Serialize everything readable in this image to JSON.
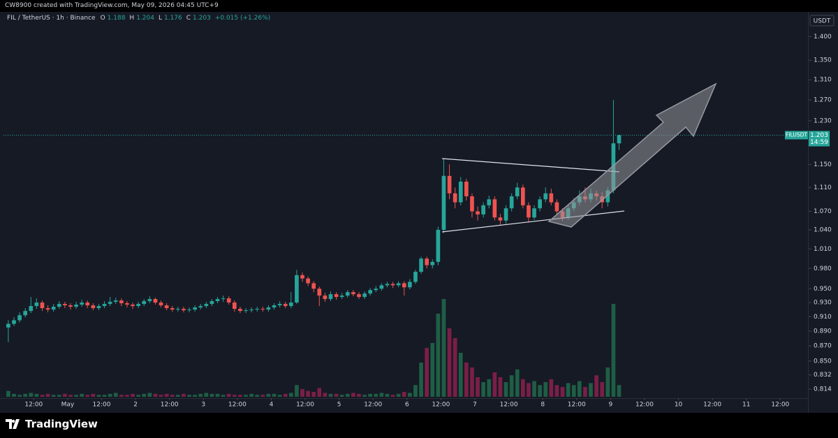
{
  "header": {
    "caption": "CW8900 created with TradingView.com, May 09, 2026 04:45 UTC+9"
  },
  "footer": {
    "brand": "TradingView"
  },
  "chart_data": {
    "type": "candlestick",
    "symbol": "FIL / TetherUS · 1h · Binance",
    "legend_labels": [
      "O",
      "H",
      "L",
      "C"
    ],
    "change": "+0.015 (+1.26%)",
    "currency": "USDT",
    "ticker": "FILUSDT",
    "countdown": "14:59",
    "log_scale": true,
    "grid": false,
    "up_color": "#26a69a",
    "down_color": "#ef5350",
    "volume_up_color": "#1e5e45",
    "volume_down_color": "#7a1f47",
    "xlim": [
      1.3,
      285.8
    ],
    "ylim": [
      0.8045,
      1.434
    ],
    "yticks": [
      {
        "value": 1.4,
        "label": "1.400"
      },
      {
        "value": 1.35,
        "label": "1.350"
      },
      {
        "value": 1.31,
        "label": "1.310"
      },
      {
        "value": 1.27,
        "label": "1.270"
      },
      {
        "value": 1.23,
        "label": "1.230"
      },
      {
        "value": 1.15,
        "label": "1.150"
      },
      {
        "value": 1.11,
        "label": "1.110"
      },
      {
        "value": 1.07,
        "label": "1.070"
      },
      {
        "value": 1.04,
        "label": "1.040"
      },
      {
        "value": 1.01,
        "label": "1.010"
      },
      {
        "value": 0.98,
        "label": "0.980"
      },
      {
        "value": 0.95,
        "label": "0.950"
      },
      {
        "value": 0.93,
        "label": "0.930"
      },
      {
        "value": 0.91,
        "label": "0.910"
      },
      {
        "value": 0.89,
        "label": "0.890"
      },
      {
        "value": 0.87,
        "label": "0.870"
      },
      {
        "value": 0.85,
        "label": "0.850"
      },
      {
        "value": 0.832,
        "label": "0.832"
      },
      {
        "value": 0.814,
        "label": "0.814"
      }
    ],
    "xticks": [
      {
        "value": 12,
        "label": "12:00"
      },
      {
        "value": 24,
        "label": "May"
      },
      {
        "value": 36,
        "label": "12:00"
      },
      {
        "value": 48,
        "label": "2"
      },
      {
        "value": 60,
        "label": "12:00"
      },
      {
        "value": 72,
        "label": "3"
      },
      {
        "value": 84,
        "label": "12:00"
      },
      {
        "value": 96,
        "label": "4"
      },
      {
        "value": 108,
        "label": "12:00"
      },
      {
        "value": 120,
        "label": "5"
      },
      {
        "value": 132,
        "label": "12:00"
      },
      {
        "value": 144,
        "label": "6"
      },
      {
        "value": 156,
        "label": "12:00"
      },
      {
        "value": 168,
        "label": "7"
      },
      {
        "value": 180,
        "label": "12:00"
      },
      {
        "value": 192,
        "label": "8"
      },
      {
        "value": 204,
        "label": "12:00"
      },
      {
        "value": 216,
        "label": "9"
      },
      {
        "value": 228,
        "label": "12:00"
      },
      {
        "value": 240,
        "label": "10"
      },
      {
        "value": 252,
        "label": "12:00"
      },
      {
        "value": 264,
        "label": "11"
      },
      {
        "value": 276,
        "label": "12:00"
      }
    ],
    "x": [
      3,
      5,
      7,
      9,
      11,
      13,
      15,
      17,
      19,
      21,
      23,
      25,
      27,
      29,
      31,
      33,
      35,
      37,
      39,
      41,
      43,
      45,
      47,
      49,
      51,
      53,
      55,
      57,
      59,
      61,
      63,
      65,
      67,
      69,
      71,
      73,
      75,
      77,
      79,
      81,
      83,
      85,
      87,
      89,
      91,
      93,
      95,
      97,
      99,
      101,
      103,
      105,
      107,
      109,
      111,
      113,
      115,
      117,
      119,
      121,
      123,
      125,
      127,
      129,
      131,
      133,
      135,
      137,
      139,
      141,
      143,
      145,
      147,
      149,
      151,
      153,
      155,
      157,
      159,
      161,
      163,
      165,
      167,
      169,
      171,
      173,
      175,
      177,
      179,
      181,
      183,
      185,
      187,
      189,
      191,
      193,
      195,
      197,
      199,
      201,
      203,
      205,
      207,
      209,
      211,
      213,
      215,
      217,
      219
    ],
    "open": [
      0.895,
      0.9,
      0.905,
      0.912,
      0.918,
      0.925,
      0.93,
      0.922,
      0.92,
      0.924,
      0.928,
      0.926,
      0.924,
      0.927,
      0.93,
      0.926,
      0.922,
      0.925,
      0.928,
      0.931,
      0.933,
      0.929,
      0.927,
      0.925,
      0.928,
      0.932,
      0.935,
      0.93,
      0.926,
      0.922,
      0.92,
      0.921,
      0.919,
      0.92,
      0.923,
      0.925,
      0.928,
      0.932,
      0.935,
      0.936,
      0.93,
      0.921,
      0.918,
      0.919,
      0.92,
      0.921,
      0.92,
      0.923,
      0.926,
      0.928,
      0.925,
      0.93,
      0.97,
      0.965,
      0.958,
      0.95,
      0.94,
      0.935,
      0.942,
      0.938,
      0.94,
      0.945,
      0.942,
      0.938,
      0.943,
      0.948,
      0.95,
      0.955,
      0.957,
      0.955,
      0.958,
      0.952,
      0.96,
      0.975,
      0.995,
      0.985,
      0.99,
      1.04,
      1.13,
      1.1,
      1.085,
      1.12,
      1.095,
      1.07,
      1.065,
      1.08,
      1.09,
      1.06,
      1.055,
      1.075,
      1.095,
      1.11,
      1.08,
      1.06,
      1.075,
      1.09,
      1.1,
      1.085,
      1.07,
      1.06,
      1.075,
      1.085,
      1.095,
      1.09,
      1.1,
      1.095,
      1.085,
      1.105,
      1.188
    ],
    "high": [
      0.905,
      0.909,
      0.916,
      0.922,
      0.938,
      0.936,
      0.933,
      0.926,
      0.928,
      0.932,
      0.931,
      0.929,
      0.931,
      0.934,
      0.933,
      0.929,
      0.928,
      0.932,
      0.938,
      0.937,
      0.936,
      0.932,
      0.93,
      0.931,
      0.935,
      0.939,
      0.937,
      0.933,
      0.929,
      0.925,
      0.924,
      0.924,
      0.923,
      0.926,
      0.928,
      0.931,
      0.935,
      0.938,
      0.94,
      0.939,
      0.933,
      0.924,
      0.922,
      0.923,
      0.924,
      0.924,
      0.926,
      0.929,
      0.932,
      0.931,
      0.945,
      0.978,
      0.974,
      0.968,
      0.961,
      0.953,
      0.944,
      0.946,
      0.945,
      0.944,
      0.948,
      0.948,
      0.945,
      0.946,
      0.951,
      0.954,
      0.958,
      0.96,
      0.96,
      0.961,
      0.961,
      0.964,
      0.978,
      0.998,
      0.998,
      0.994,
      1.045,
      1.16,
      1.15,
      1.11,
      1.128,
      1.125,
      1.1,
      1.078,
      1.085,
      1.096,
      1.095,
      1.066,
      1.08,
      1.1,
      1.118,
      1.115,
      1.085,
      1.08,
      1.095,
      1.11,
      1.108,
      1.09,
      1.075,
      1.08,
      1.092,
      1.105,
      1.11,
      1.108,
      1.105,
      1.102,
      1.11,
      1.27,
      1.204
    ],
    "low": [
      0.875,
      0.897,
      0.902,
      0.909,
      0.915,
      0.921,
      0.918,
      0.916,
      0.917,
      0.921,
      0.922,
      0.92,
      0.921,
      0.924,
      0.922,
      0.919,
      0.919,
      0.922,
      0.925,
      0.928,
      0.925,
      0.923,
      0.921,
      0.922,
      0.925,
      0.929,
      0.927,
      0.923,
      0.919,
      0.917,
      0.917,
      0.916,
      0.916,
      0.917,
      0.92,
      0.922,
      0.925,
      0.929,
      0.931,
      0.927,
      0.917,
      0.915,
      0.915,
      0.916,
      0.917,
      0.917,
      0.917,
      0.92,
      0.923,
      0.922,
      0.922,
      0.928,
      0.96,
      0.954,
      0.945,
      0.925,
      0.931,
      0.932,
      0.934,
      0.935,
      0.937,
      0.939,
      0.935,
      0.935,
      0.94,
      0.945,
      0.947,
      0.952,
      0.951,
      0.952,
      0.94,
      0.949,
      0.957,
      0.972,
      0.98,
      0.98,
      0.985,
      1.035,
      1.09,
      1.075,
      1.08,
      1.088,
      1.06,
      1.055,
      1.06,
      1.075,
      1.055,
      1.048,
      1.05,
      1.07,
      1.09,
      1.075,
      1.052,
      1.056,
      1.07,
      1.085,
      1.08,
      1.064,
      1.054,
      1.056,
      1.07,
      1.08,
      1.085,
      1.085,
      1.088,
      1.075,
      1.078,
      1.1,
      1.176
    ],
    "close": [
      0.9,
      0.905,
      0.912,
      0.918,
      0.925,
      0.93,
      0.922,
      0.92,
      0.924,
      0.928,
      0.926,
      0.924,
      0.927,
      0.93,
      0.926,
      0.922,
      0.925,
      0.928,
      0.931,
      0.933,
      0.929,
      0.927,
      0.925,
      0.928,
      0.932,
      0.935,
      0.93,
      0.926,
      0.922,
      0.92,
      0.921,
      0.919,
      0.92,
      0.923,
      0.925,
      0.928,
      0.932,
      0.935,
      0.936,
      0.93,
      0.921,
      0.918,
      0.919,
      0.92,
      0.921,
      0.92,
      0.923,
      0.926,
      0.928,
      0.925,
      0.93,
      0.97,
      0.965,
      0.958,
      0.95,
      0.94,
      0.935,
      0.942,
      0.938,
      0.94,
      0.945,
      0.942,
      0.938,
      0.943,
      0.948,
      0.95,
      0.955,
      0.957,
      0.955,
      0.958,
      0.952,
      0.96,
      0.975,
      0.995,
      0.985,
      0.99,
      1.04,
      1.13,
      1.1,
      1.085,
      1.12,
      1.095,
      1.07,
      1.065,
      1.08,
      1.09,
      1.06,
      1.055,
      1.075,
      1.095,
      1.11,
      1.08,
      1.06,
      1.075,
      1.09,
      1.1,
      1.085,
      1.07,
      1.06,
      1.075,
      1.085,
      1.095,
      1.09,
      1.1,
      1.095,
      1.085,
      1.105,
      1.188,
      1.203
    ],
    "volume": [
      6,
      3,
      2,
      3,
      4,
      3,
      2,
      3,
      2,
      2,
      3,
      2,
      2,
      3,
      2,
      3,
      2,
      2,
      3,
      4,
      2,
      2,
      3,
      2,
      3,
      4,
      3,
      2,
      3,
      2,
      2,
      3,
      2,
      2,
      3,
      4,
      3,
      3,
      2,
      3,
      2,
      2,
      2,
      3,
      2,
      2,
      3,
      3,
      2,
      3,
      4,
      12,
      8,
      6,
      5,
      9,
      4,
      3,
      3,
      2,
      3,
      4,
      3,
      2,
      3,
      3,
      4,
      3,
      2,
      3,
      5,
      4,
      12,
      35,
      50,
      55,
      85,
      100,
      70,
      60,
      45,
      35,
      30,
      20,
      15,
      18,
      25,
      20,
      15,
      22,
      28,
      18,
      14,
      16,
      12,
      15,
      18,
      12,
      10,
      14,
      12,
      16,
      10,
      14,
      22,
      15,
      30,
      95,
      12
    ]
  }
}
